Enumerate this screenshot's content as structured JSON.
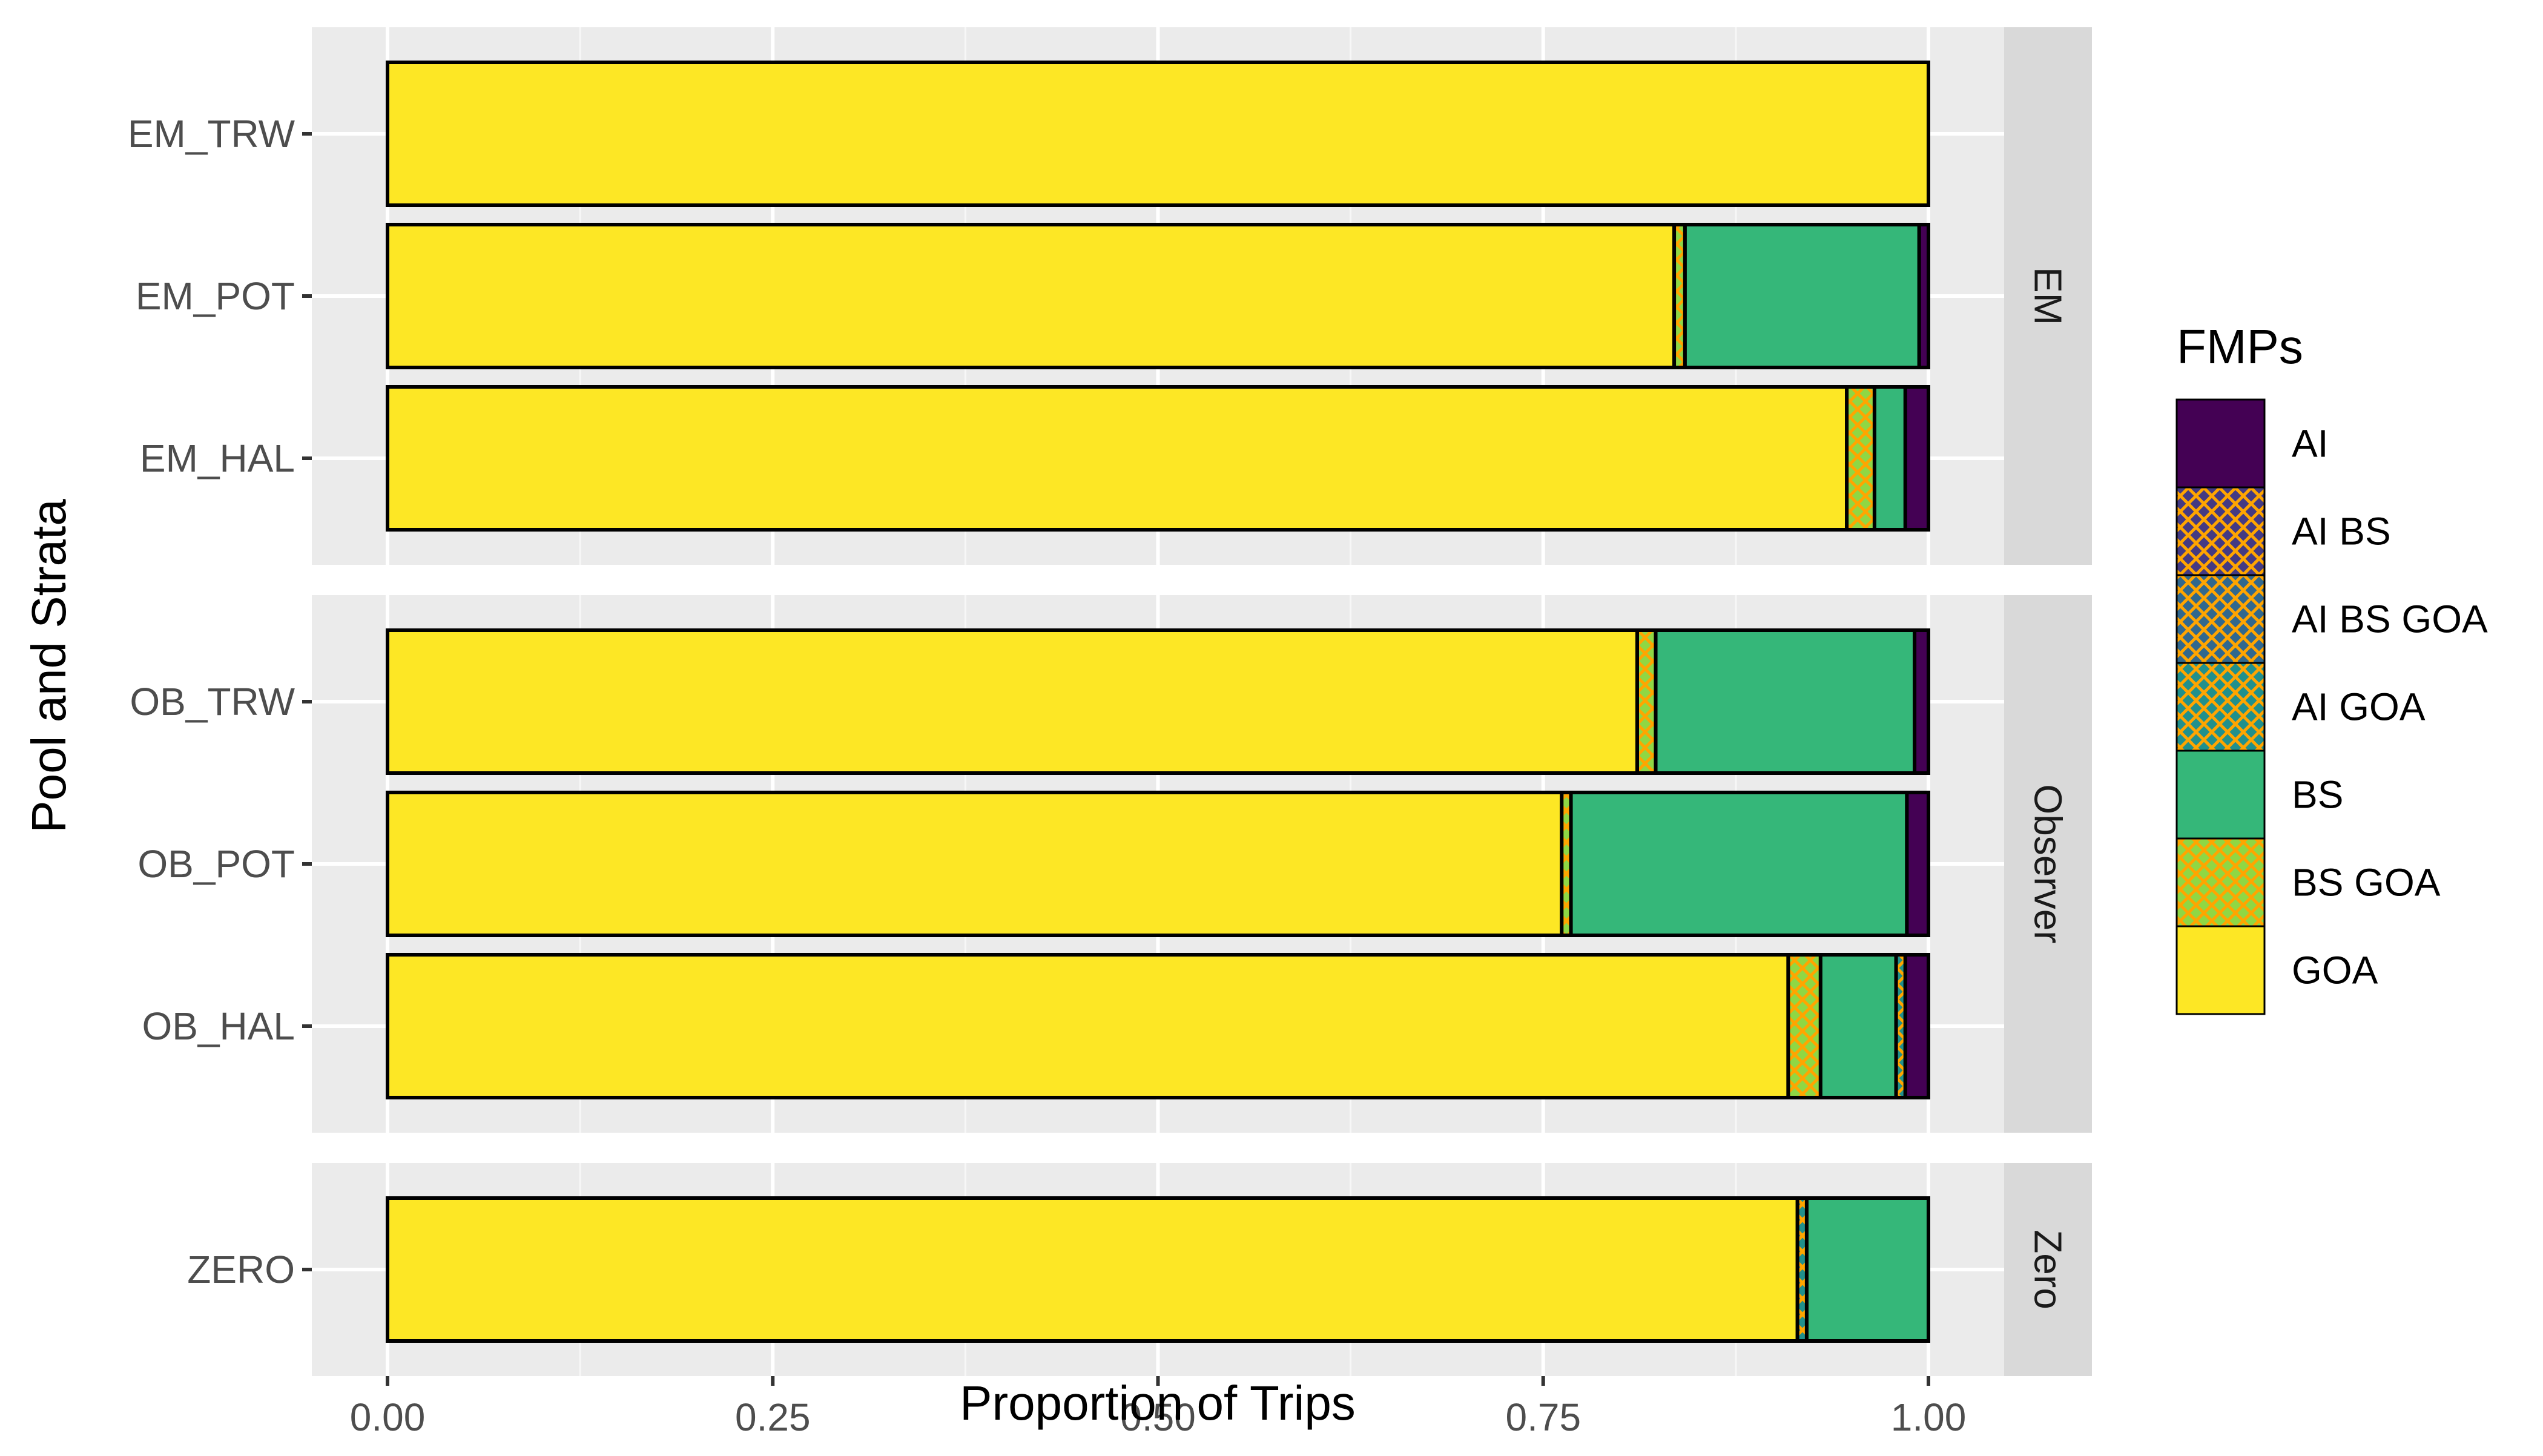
{
  "chart_data": {
    "type": "bar",
    "orientation": "horizontal",
    "stacked": true,
    "xlabel": "Proportion of Trips",
    "ylabel": "Pool and Strata",
    "xlim": [
      0,
      1
    ],
    "xticks": [
      "0.00",
      "0.25",
      "0.50",
      "0.75",
      "1.00"
    ],
    "grid": true,
    "legend": {
      "title": "FMPs",
      "placement": "right",
      "entries": [
        {
          "name": "AI",
          "color": "#440154",
          "hatched": false
        },
        {
          "name": "AI BS",
          "color": "#443A83",
          "hatched": true
        },
        {
          "name": "AI BS GOA",
          "color": "#31688E",
          "hatched": true
        },
        {
          "name": "AI GOA",
          "color": "#21908C",
          "hatched": true
        },
        {
          "name": "BS",
          "color": "#35B779",
          "hatched": false
        },
        {
          "name": "BS GOA",
          "color": "#8FD744",
          "hatched": true
        },
        {
          "name": "GOA",
          "color": "#FDE725",
          "hatched": false
        }
      ]
    },
    "hatch_color": "#FFA500",
    "facets": [
      {
        "label": "EM",
        "strata": [
          {
            "name": "EM_TRW",
            "segments": [
              {
                "fmp": "GOA",
                "value": 1.0
              }
            ]
          },
          {
            "name": "EM_POT",
            "segments": [
              {
                "fmp": "GOA",
                "value": 0.835
              },
              {
                "fmp": "BS GOA",
                "value": 0.007
              },
              {
                "fmp": "BS",
                "value": 0.152
              },
              {
                "fmp": "AI",
                "value": 0.006
              }
            ]
          },
          {
            "name": "EM_HAL",
            "segments": [
              {
                "fmp": "GOA",
                "value": 0.947
              },
              {
                "fmp": "BS GOA",
                "value": 0.018
              },
              {
                "fmp": "BS",
                "value": 0.02
              },
              {
                "fmp": "AI",
                "value": 0.015
              }
            ]
          }
        ]
      },
      {
        "label": "Observer",
        "strata": [
          {
            "name": "OB_TRW",
            "segments": [
              {
                "fmp": "GOA",
                "value": 0.811
              },
              {
                "fmp": "BS GOA",
                "value": 0.012
              },
              {
                "fmp": "BS",
                "value": 0.168
              },
              {
                "fmp": "AI",
                "value": 0.009
              }
            ]
          },
          {
            "name": "OB_POT",
            "segments": [
              {
                "fmp": "GOA",
                "value": 0.762
              },
              {
                "fmp": "BS GOA",
                "value": 0.006
              },
              {
                "fmp": "BS",
                "value": 0.218
              },
              {
                "fmp": "AI",
                "value": 0.014
              }
            ]
          },
          {
            "name": "OB_HAL",
            "segments": [
              {
                "fmp": "GOA",
                "value": 0.909
              },
              {
                "fmp": "BS GOA",
                "value": 0.021
              },
              {
                "fmp": "BS",
                "value": 0.049
              },
              {
                "fmp": "AI GOA",
                "value": 0.006
              },
              {
                "fmp": "AI",
                "value": 0.015
              }
            ]
          }
        ]
      },
      {
        "label": "Zero",
        "strata": [
          {
            "name": "ZERO",
            "segments": [
              {
                "fmp": "GOA",
                "value": 0.915
              },
              {
                "fmp": "AI GOA",
                "value": 0.006
              },
              {
                "fmp": "BS",
                "value": 0.079
              }
            ]
          }
        ]
      }
    ]
  }
}
